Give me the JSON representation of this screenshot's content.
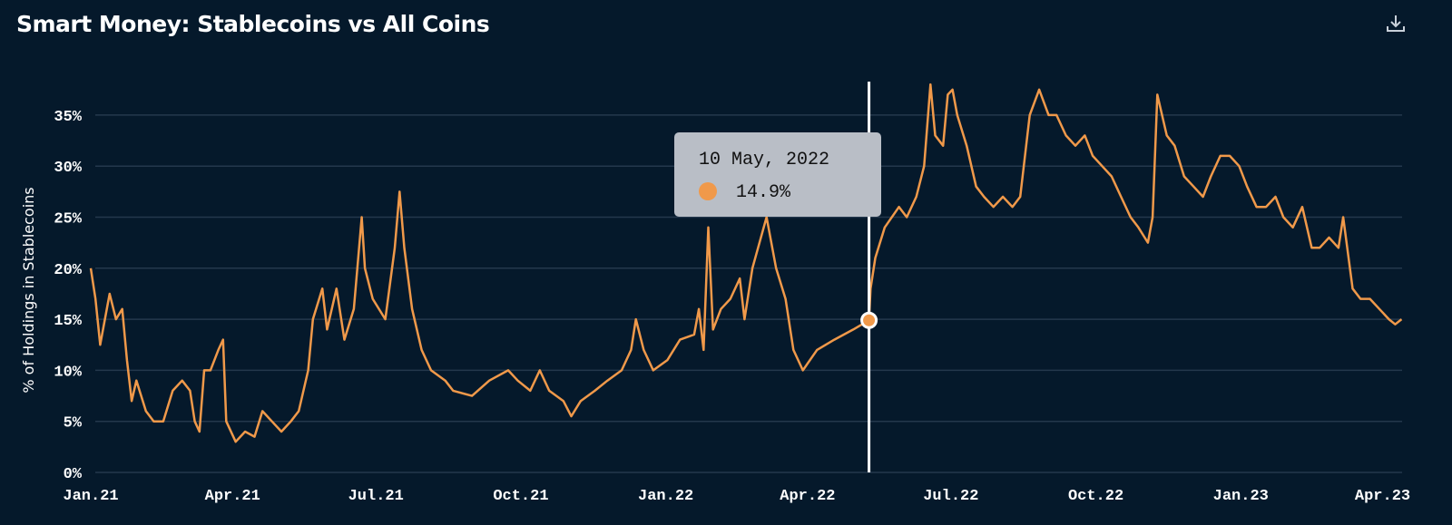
{
  "title": "Smart Money: Stablecoins vs All Coins",
  "download_icon": "download-icon",
  "colors": {
    "background": "#05192b",
    "line": "#f0994a",
    "grid": "#24384c",
    "cursor": "#ffffff",
    "tooltip_bg": "#b9bec6"
  },
  "tooltip": {
    "date": "10 May, 2022",
    "value": "14.9%"
  },
  "chart_data": {
    "type": "line",
    "title": "Smart Money: Stablecoins vs All Coins",
    "xlabel": "",
    "ylabel": "% of Holdings in Stablecoins",
    "ylim": [
      0,
      38
    ],
    "xlim": [
      "2021-01-01",
      "2023-04-13"
    ],
    "grid": true,
    "y_ticks": [
      "0%",
      "5%",
      "10%",
      "15%",
      "20%",
      "25%",
      "30%",
      "35%"
    ],
    "y_tick_values": [
      0,
      5,
      10,
      15,
      20,
      25,
      30,
      35
    ],
    "x_ticks": [
      "Jan.21",
      "Apr.21",
      "Jul.21",
      "Oct.21",
      "Jan.22",
      "Apr.22",
      "Jul.22",
      "Oct.22",
      "Jan.23",
      "Apr.23"
    ],
    "x_tick_dates": [
      "2021-01-01",
      "2021-04-01",
      "2021-07-01",
      "2021-10-01",
      "2022-01-01",
      "2022-04-01",
      "2022-07-01",
      "2022-10-01",
      "2023-01-01",
      "2023-04-01"
    ],
    "highlight": {
      "date": "2022-05-10",
      "value": 14.9
    },
    "series": [
      {
        "points": [
          [
            "2021-01-01",
            20
          ],
          [
            "2021-01-04",
            17
          ],
          [
            "2021-01-07",
            12.5
          ],
          [
            "2021-01-10",
            15
          ],
          [
            "2021-01-13",
            17.5
          ],
          [
            "2021-01-17",
            15
          ],
          [
            "2021-01-21",
            16
          ],
          [
            "2021-01-24",
            11
          ],
          [
            "2021-01-27",
            7
          ],
          [
            "2021-01-30",
            9
          ],
          [
            "2021-02-05",
            6
          ],
          [
            "2021-02-10",
            5
          ],
          [
            "2021-02-16",
            5
          ],
          [
            "2021-02-22",
            8
          ],
          [
            "2021-02-28",
            9
          ],
          [
            "2021-03-05",
            8
          ],
          [
            "2021-03-08",
            5
          ],
          [
            "2021-03-11",
            4
          ],
          [
            "2021-03-14",
            10
          ],
          [
            "2021-03-18",
            10
          ],
          [
            "2021-03-23",
            12
          ],
          [
            "2021-03-26",
            13
          ],
          [
            "2021-03-28",
            5
          ],
          [
            "2021-04-03",
            3
          ],
          [
            "2021-04-09",
            4
          ],
          [
            "2021-04-15",
            3.5
          ],
          [
            "2021-04-20",
            6
          ],
          [
            "2021-04-26",
            5
          ],
          [
            "2021-05-02",
            4
          ],
          [
            "2021-05-08",
            5
          ],
          [
            "2021-05-13",
            6
          ],
          [
            "2021-05-19",
            10
          ],
          [
            "2021-05-22",
            15
          ],
          [
            "2021-05-28",
            18
          ],
          [
            "2021-05-31",
            14
          ],
          [
            "2021-06-06",
            18
          ],
          [
            "2021-06-11",
            13
          ],
          [
            "2021-06-17",
            16
          ],
          [
            "2021-06-22",
            25
          ],
          [
            "2021-06-24",
            20
          ],
          [
            "2021-06-29",
            17
          ],
          [
            "2021-07-07",
            15
          ],
          [
            "2021-07-13",
            22
          ],
          [
            "2021-07-16",
            27.5
          ],
          [
            "2021-07-19",
            22
          ],
          [
            "2021-07-24",
            16
          ],
          [
            "2021-07-30",
            12
          ],
          [
            "2021-08-05",
            10
          ],
          [
            "2021-08-14",
            9
          ],
          [
            "2021-08-19",
            8
          ],
          [
            "2021-08-31",
            7.5
          ],
          [
            "2021-09-11",
            9
          ],
          [
            "2021-09-23",
            10
          ],
          [
            "2021-09-29",
            9
          ],
          [
            "2021-10-07",
            8
          ],
          [
            "2021-10-13",
            10
          ],
          [
            "2021-10-19",
            8
          ],
          [
            "2021-10-28",
            7
          ],
          [
            "2021-11-02",
            5.5
          ],
          [
            "2021-11-08",
            7
          ],
          [
            "2021-11-17",
            8
          ],
          [
            "2021-11-25",
            9
          ],
          [
            "2021-12-04",
            10
          ],
          [
            "2021-12-10",
            12
          ],
          [
            "2021-12-13",
            15
          ],
          [
            "2021-12-18",
            12
          ],
          [
            "2021-12-24",
            10
          ],
          [
            "2022-01-02",
            11
          ],
          [
            "2022-01-10",
            13
          ],
          [
            "2022-01-19",
            13.5
          ],
          [
            "2022-01-22",
            16
          ],
          [
            "2022-01-25",
            12
          ],
          [
            "2022-01-28",
            24
          ],
          [
            "2022-01-31",
            14
          ],
          [
            "2022-02-05",
            16
          ],
          [
            "2022-02-11",
            17
          ],
          [
            "2022-02-17",
            19
          ],
          [
            "2022-02-20",
            15
          ],
          [
            "2022-02-25",
            20
          ],
          [
            "2022-03-06",
            25
          ],
          [
            "2022-03-12",
            20
          ],
          [
            "2022-03-18",
            17
          ],
          [
            "2022-03-23",
            12
          ],
          [
            "2022-03-29",
            10
          ],
          [
            "2022-04-07",
            12
          ],
          [
            "2022-04-18",
            13
          ],
          [
            "2022-04-30",
            14
          ],
          [
            "2022-05-10",
            14.9
          ],
          [
            "2022-05-11",
            18
          ],
          [
            "2022-05-14",
            21
          ],
          [
            "2022-05-20",
            24
          ],
          [
            "2022-05-29",
            26
          ],
          [
            "2022-06-03",
            25
          ],
          [
            "2022-06-09",
            27
          ],
          [
            "2022-06-14",
            30
          ],
          [
            "2022-06-18",
            38
          ],
          [
            "2022-06-21",
            33
          ],
          [
            "2022-06-26",
            32
          ],
          [
            "2022-06-29",
            37
          ],
          [
            "2022-07-02",
            37.5
          ],
          [
            "2022-07-05",
            35
          ],
          [
            "2022-07-11",
            32
          ],
          [
            "2022-07-17",
            28
          ],
          [
            "2022-07-22",
            27
          ],
          [
            "2022-07-28",
            26
          ],
          [
            "2022-08-03",
            27
          ],
          [
            "2022-08-09",
            26
          ],
          [
            "2022-08-14",
            27
          ],
          [
            "2022-08-20",
            35
          ],
          [
            "2022-08-26",
            37.5
          ],
          [
            "2022-09-01",
            35
          ],
          [
            "2022-09-06",
            35
          ],
          [
            "2022-09-12",
            33
          ],
          [
            "2022-09-18",
            32
          ],
          [
            "2022-09-24",
            33
          ],
          [
            "2022-09-29",
            31
          ],
          [
            "2022-10-05",
            30
          ],
          [
            "2022-10-11",
            29
          ],
          [
            "2022-10-17",
            27
          ],
          [
            "2022-10-23",
            25
          ],
          [
            "2022-10-28",
            24
          ],
          [
            "2022-11-03",
            22.5
          ],
          [
            "2022-11-06",
            25
          ],
          [
            "2022-11-09",
            37
          ],
          [
            "2022-11-15",
            33
          ],
          [
            "2022-11-20",
            32
          ],
          [
            "2022-11-26",
            29
          ],
          [
            "2022-12-02",
            28
          ],
          [
            "2022-12-08",
            27
          ],
          [
            "2022-12-13",
            29
          ],
          [
            "2022-12-19",
            31
          ],
          [
            "2022-12-25",
            31
          ],
          [
            "2022-12-31",
            30
          ],
          [
            "2023-01-05",
            28
          ],
          [
            "2023-01-11",
            26
          ],
          [
            "2023-01-17",
            26
          ],
          [
            "2023-01-23",
            27
          ],
          [
            "2023-01-28",
            25
          ],
          [
            "2023-02-03",
            24
          ],
          [
            "2023-02-09",
            26
          ],
          [
            "2023-02-15",
            22
          ],
          [
            "2023-02-20",
            22
          ],
          [
            "2023-02-26",
            23
          ],
          [
            "2023-03-04",
            22
          ],
          [
            "2023-03-07",
            25
          ],
          [
            "2023-03-13",
            18
          ],
          [
            "2023-03-18",
            17
          ],
          [
            "2023-03-24",
            17
          ],
          [
            "2023-03-30",
            16
          ],
          [
            "2023-04-05",
            15
          ],
          [
            "2023-04-09",
            14.5
          ],
          [
            "2023-04-13",
            15
          ]
        ]
      }
    ]
  }
}
